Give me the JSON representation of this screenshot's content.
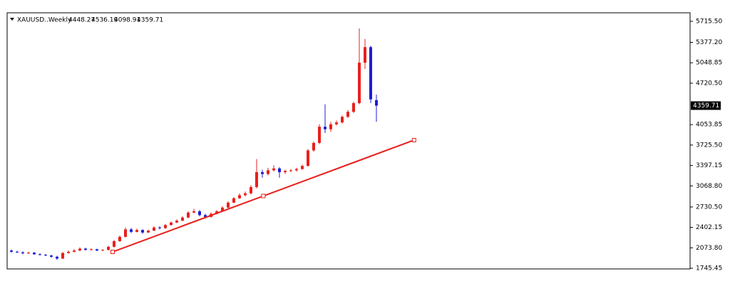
{
  "chart_data": {
    "type": "candlestick",
    "title": "XAUUSD..Weekly",
    "open": [
      2030,
      2010,
      2000,
      1985,
      1995,
      1970,
      1960,
      1950,
      1930,
      1900,
      1990,
      2010,
      2030,
      2060,
      2040,
      2050,
      2030,
      2040,
      2090,
      2180,
      2250,
      2370,
      2330,
      2360,
      2320,
      2350,
      2400,
      2390,
      2440,
      2480,
      2510,
      2560,
      2640,
      2660,
      2600,
      2570,
      2620,
      2660,
      2720,
      2800,
      2870,
      2920,
      2950,
      3050,
      3290,
      3260,
      3320,
      3350,
      3290,
      3310,
      3320,
      3340,
      3390,
      3640,
      3760,
      4020,
      3980,
      4060,
      4090,
      4180,
      4260,
      4400,
      5050,
      5300,
      4448.27
    ],
    "high": [
      2045,
      2025,
      2015,
      2010,
      2005,
      1985,
      1975,
      1960,
      1945,
      2005,
      2030,
      2050,
      2080,
      2075,
      2065,
      2060,
      2050,
      2105,
      2200,
      2270,
      2400,
      2390,
      2380,
      2370,
      2365,
      2420,
      2420,
      2455,
      2495,
      2530,
      2580,
      2660,
      2700,
      2680,
      2620,
      2640,
      2680,
      2740,
      2820,
      2890,
      2950,
      2980,
      3080,
      3500,
      3330,
      3360,
      3400,
      3370,
      3330,
      3340,
      3360,
      3410,
      3660,
      3780,
      4060,
      4380,
      4100,
      4120,
      4200,
      4290,
      4420,
      5600,
      5430,
      5320,
      4536.19
    ],
    "low": [
      1995,
      1990,
      1970,
      1975,
      1960,
      1950,
      1940,
      1915,
      1880,
      1895,
      1980,
      2000,
      2020,
      2030,
      2030,
      2020,
      2020,
      2030,
      2080,
      2170,
      2240,
      2310,
      2320,
      2300,
      2310,
      2340,
      2370,
      2380,
      2430,
      2470,
      2500,
      2550,
      2630,
      2580,
      2540,
      2560,
      2610,
      2650,
      2710,
      2790,
      2860,
      2900,
      2930,
      3030,
      3200,
      3240,
      3300,
      3200,
      3260,
      3290,
      3300,
      3330,
      3380,
      3620,
      3740,
      3920,
      3940,
      4040,
      4070,
      4160,
      4240,
      4380,
      4950,
      4400,
      4098.91
    ],
    "close": [
      2010,
      2000,
      1985,
      1995,
      1970,
      1960,
      1950,
      1930,
      1900,
      1990,
      2010,
      2030,
      2060,
      2040,
      2050,
      2030,
      2040,
      2090,
      2180,
      2250,
      2370,
      2330,
      2360,
      2320,
      2350,
      2400,
      2390,
      2440,
      2480,
      2510,
      2560,
      2640,
      2660,
      2600,
      2570,
      2620,
      2660,
      2720,
      2800,
      2870,
      2920,
      2950,
      3050,
      3290,
      3260,
      3320,
      3350,
      3290,
      3310,
      3320,
      3340,
      3390,
      3640,
      3760,
      4020,
      3980,
      4060,
      4090,
      4180,
      4260,
      4400,
      5050,
      5300,
      4460,
      4359.71
    ],
    "up_color": "#e8201c",
    "down_color": "#1d1dd6",
    "trendline": {
      "x": [
        17.75,
        70.6
      ],
      "y": [
        2008,
        3805
      ],
      "color": "#e8201c"
    },
    "xlim": [
      -0.75,
      119
    ],
    "ylim": [
      1734,
      5852
    ],
    "yticks": [
      {
        "value": 5715.5,
        "label": "5715.50"
      },
      {
        "value": 5377.2,
        "label": "5377.20"
      },
      5048.85,
      {
        "value": 4720.5,
        "label": "4720.50"
      },
      4053.85,
      {
        "value": 3725.5,
        "label": "3725.50"
      },
      3397.15,
      {
        "value": 3068.8,
        "label": "3068.80"
      },
      {
        "value": 2730.5,
        "label": "2730.50"
      },
      2402.15,
      {
        "value": 2073.8,
        "label": "2073.80"
      },
      1745.45
    ]
  }
}
